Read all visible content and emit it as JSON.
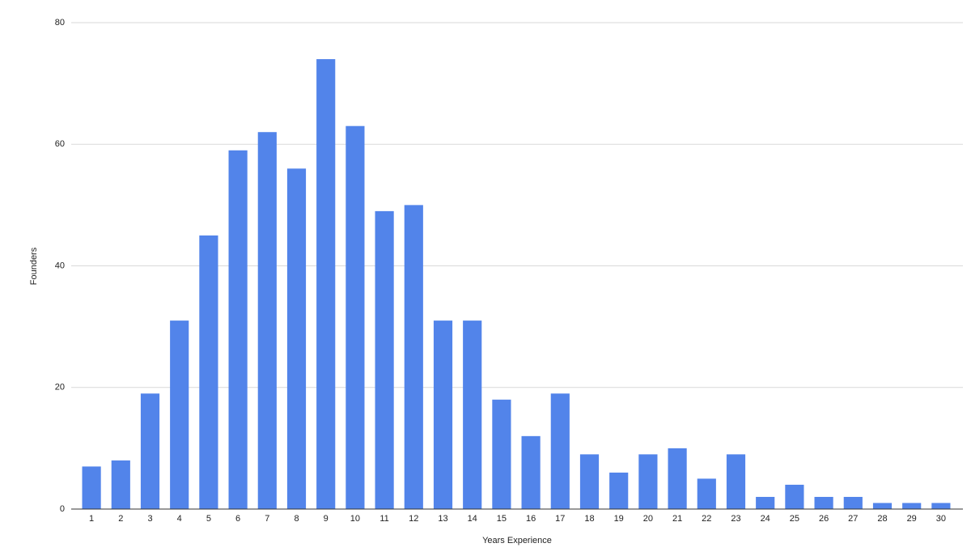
{
  "chart_data": {
    "type": "bar",
    "x_label": "Years Experience",
    "y_label": "Founders",
    "categories": [
      "1",
      "2",
      "3",
      "4",
      "5",
      "6",
      "7",
      "8",
      "9",
      "10",
      "11",
      "12",
      "13",
      "14",
      "15",
      "16",
      "17",
      "18",
      "19",
      "20",
      "21",
      "22",
      "23",
      "24",
      "25",
      "26",
      "27",
      "28",
      "29",
      "30"
    ],
    "values": [
      7,
      8,
      19,
      31,
      45,
      59,
      62,
      56,
      74,
      63,
      49,
      50,
      31,
      31,
      18,
      12,
      19,
      9,
      6,
      9,
      10,
      5,
      9,
      2,
      4,
      2,
      2,
      1,
      1,
      1
    ],
    "color": "#5284ea",
    "ylim": [
      0,
      80
    ],
    "yticks": [
      0,
      20,
      40,
      60,
      80
    ],
    "grid": true
  }
}
